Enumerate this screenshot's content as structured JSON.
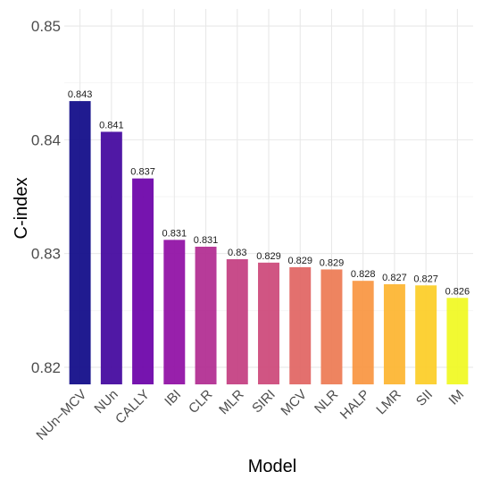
{
  "chart_data": {
    "type": "bar",
    "title": "",
    "xlabel": "Model",
    "ylabel": "C-index",
    "ylim": [
      0.8185,
      0.8515
    ],
    "yticks": [
      "0.82",
      "0.83",
      "0.84",
      "0.85"
    ],
    "grid": true,
    "legend": "none",
    "categories": [
      "NUn−MCV",
      "NUn",
      "CALLY",
      "IBI",
      "CLR",
      "MLR",
      "SIRI",
      "MCV",
      "NLR",
      "HALP",
      "LMR",
      "SII",
      "IM"
    ],
    "values": [
      0.8434,
      0.8407,
      0.8366,
      0.8312,
      0.8306,
      0.8295,
      0.8292,
      0.8288,
      0.8286,
      0.8276,
      0.8273,
      0.8272,
      0.8261
    ],
    "labels": [
      "0.843",
      "0.841",
      "0.837",
      "0.831",
      "0.831",
      "0.83",
      "0.829",
      "0.829",
      "0.829",
      "0.828",
      "0.827",
      "0.827",
      "0.826"
    ],
    "colors": [
      "#0d0887",
      "#41049d",
      "#6a00a8",
      "#8f0da4",
      "#b12a90",
      "#c33d80",
      "#cc4778",
      "#e16462",
      "#ed7953",
      "#f89540",
      "#fdb42f",
      "#fccd25",
      "#f0f921"
    ]
  }
}
